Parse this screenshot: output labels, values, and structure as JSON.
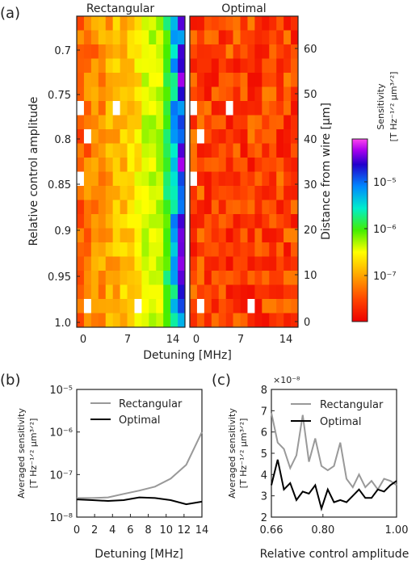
{
  "figure": {
    "panel_labels": [
      "(a)",
      "(b)",
      "(c)"
    ]
  },
  "chart_data": [
    {
      "type": "heatmap",
      "panel": "(a)",
      "maps": [
        {
          "title": "Rectangular"
        },
        {
          "title": "Optimal"
        }
      ],
      "xlabel": "Detuning [MHz]",
      "ylabel": "Relative control amplitude",
      "ylabel_right": "Distance from wire [μm]",
      "xticks": [
        "0",
        "7",
        "14"
      ],
      "yticks": [
        "0.7",
        "0.75",
        "0.8",
        "0.85",
        "0.9",
        "0.95",
        "1.0"
      ],
      "yticks_right": [
        "0",
        "10",
        "20",
        "30",
        "40",
        "50",
        "60"
      ],
      "colorbar": {
        "label_line1": "Sensitivity",
        "label_line2": "[T Hz⁻¹ᐟ² μm³ᐟ²]",
        "scale": "log",
        "ticks": [
          "10⁻⁵",
          "10⁻⁶",
          "10⁻⁷"
        ],
        "range": [
          1.5e-08,
          5e-05
        ]
      }
    },
    {
      "type": "line",
      "panel": "(b)",
      "xlabel": "Detuning [MHz]",
      "ylabel_line1": "Averaged sensitivity",
      "ylabel_line2": "[T Hz⁻¹ᐟ² μm³ᐟ²]",
      "xticks": [
        "0",
        "2",
        "4",
        "6",
        "8",
        "10",
        "12",
        "14"
      ],
      "yticks": [
        "10⁻⁸",
        "10⁻⁷",
        "10⁻⁶",
        "10⁻⁵"
      ],
      "yscale": "log",
      "xlim": [
        0,
        14
      ],
      "ylim": [
        1e-08,
        1e-05
      ],
      "legend_position": "upper-center",
      "series": [
        {
          "name": "Rectangular",
          "color": "#999999",
          "x": [
            0,
            1.75,
            3.5,
            5.25,
            7,
            8.75,
            10.5,
            12.25,
            14
          ],
          "y": [
            2.8e-08,
            2.8e-08,
            2.9e-08,
            3.5e-08,
            4.2e-08,
            5.2e-08,
            8e-08,
            1.7e-07,
            1e-06
          ]
        },
        {
          "name": "Optimal",
          "color": "#000000",
          "x": [
            0,
            1.75,
            3.5,
            5.25,
            7,
            8.75,
            10.5,
            12.25,
            14
          ],
          "y": [
            2.6e-08,
            2.5e-08,
            2.4e-08,
            2.5e-08,
            2.9e-08,
            2.8e-08,
            2.5e-08,
            2e-08,
            2.3e-08
          ]
        }
      ]
    },
    {
      "type": "line",
      "panel": "(c)",
      "xlabel": "Relative control amplitude",
      "ylabel_line1": "Averaged sensitivity",
      "ylabel_line2": "[T Hz⁻¹ᐟ² μm³ᐟ²]",
      "multiplier": "×10⁻⁸",
      "xticks": [
        "0.66",
        "0.80",
        "1.00"
      ],
      "yticks": [
        "2",
        "3",
        "4",
        "5",
        "6",
        "7",
        "8"
      ],
      "xlim": [
        0.66,
        1.0
      ],
      "ylim": [
        2,
        8
      ],
      "legend_position": "upper-right",
      "series": [
        {
          "name": "Rectangular",
          "color": "#999999",
          "x": [
            0.66,
            0.677,
            0.694,
            0.711,
            0.728,
            0.745,
            0.762,
            0.779,
            0.796,
            0.813,
            0.83,
            0.847,
            0.864,
            0.881,
            0.898,
            0.915,
            0.932,
            0.949,
            0.966,
            0.983,
            1.0
          ],
          "y": [
            6.9,
            5.5,
            5.2,
            4.3,
            4.9,
            6.8,
            4.6,
            5.7,
            4.4,
            4.2,
            4.4,
            5.5,
            3.8,
            3.4,
            4.0,
            3.4,
            3.7,
            3.3,
            3.8,
            3.7,
            3.5
          ]
        },
        {
          "name": "Optimal",
          "color": "#000000",
          "x": [
            0.66,
            0.677,
            0.694,
            0.711,
            0.728,
            0.745,
            0.762,
            0.779,
            0.796,
            0.813,
            0.83,
            0.847,
            0.864,
            0.881,
            0.898,
            0.915,
            0.932,
            0.949,
            0.966,
            0.983,
            1.0
          ],
          "y": [
            3.5,
            4.7,
            3.3,
            3.6,
            2.8,
            3.2,
            3.1,
            3.5,
            2.4,
            3.3,
            2.7,
            2.8,
            2.7,
            3.0,
            3.3,
            2.9,
            2.9,
            3.3,
            3.2,
            3.5,
            3.7
          ]
        }
      ]
    }
  ]
}
